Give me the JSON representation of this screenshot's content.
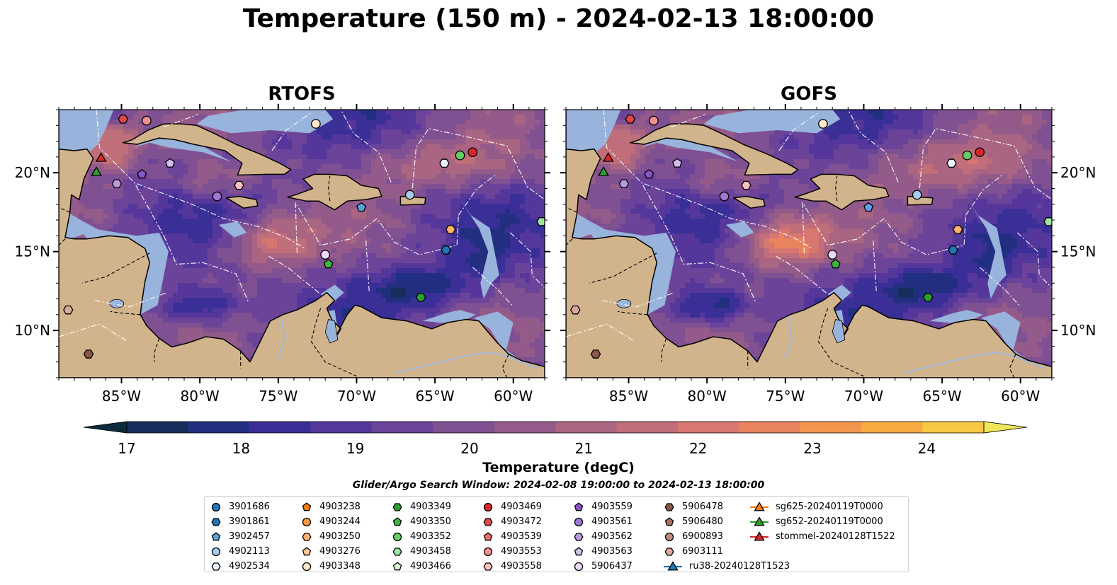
{
  "title": "Temperature (150 m) - 2024-02-13 18:00:00",
  "panels": [
    {
      "title": "RTOFS",
      "model": "rtofs"
    },
    {
      "title": "GOFS",
      "model": "gofs"
    }
  ],
  "map": {
    "lon_range": [
      -89,
      -58
    ],
    "lat_range": [
      7,
      24
    ],
    "lon_ticks": [
      -85,
      -80,
      -75,
      -70,
      -65,
      -60
    ],
    "lat_ticks": [
      10,
      15,
      20
    ],
    "lon_tick_labels": [
      "85°W",
      "80°W",
      "75°W",
      "70°W",
      "65°W",
      "60°W"
    ],
    "lat_tick_labels": [
      "10°N",
      "15°N",
      "20°N"
    ],
    "colors": {
      "land": "#d2b48c",
      "shallow_water": "#98b3dc",
      "deep": "#0a2232"
    }
  },
  "colorbar": {
    "label": "Temperature (degC)",
    "range": [
      17,
      24.5
    ],
    "step": 0.5,
    "ticks": [
      "17",
      "18",
      "19",
      "20",
      "21",
      "22",
      "23",
      "24"
    ],
    "extend": "both",
    "colors": [
      "#0c2a3d",
      "#172d5c",
      "#222f80",
      "#3a2f96",
      "#55379c",
      "#6b4499",
      "#7f5092",
      "#945b8a",
      "#a96581",
      "#c06e7a",
      "#d77770",
      "#e9845f",
      "#f3964d",
      "#f8ab42",
      "#f7c842",
      "#f1e65a"
    ]
  },
  "search_window": "Glider/Argo Search Window: 2024-02-08 19:00:00 to 2024-02-13 18:00:00",
  "legend": [
    {
      "label": "3901686",
      "marker": "circle",
      "color": "#1f77b4"
    },
    {
      "label": "3901861",
      "marker": "hexagon",
      "color": "#1f77b4"
    },
    {
      "label": "3902457",
      "marker": "pentagon",
      "color": "#5aa0db"
    },
    {
      "label": "4902113",
      "marker": "circle",
      "color": "#a6cbef"
    },
    {
      "label": "4902534",
      "marker": "hexagon",
      "color": "#eaf4ff"
    },
    {
      "label": "4903238",
      "marker": "pentagon",
      "color": "#ff7f0e"
    },
    {
      "label": "4903244",
      "marker": "circle",
      "color": "#ff9a3c"
    },
    {
      "label": "4903250",
      "marker": "hexagon",
      "color": "#ffb36b"
    },
    {
      "label": "4903276",
      "marker": "pentagon",
      "color": "#ffcc9a"
    },
    {
      "label": "4903348",
      "marker": "circle",
      "color": "#ffe8cc"
    },
    {
      "label": "4903349",
      "marker": "hexagon",
      "color": "#2ca02c"
    },
    {
      "label": "4903350",
      "marker": "pentagon",
      "color": "#3fb63f"
    },
    {
      "label": "4903352",
      "marker": "circle",
      "color": "#66cc66"
    },
    {
      "label": "4903458",
      "marker": "hexagon",
      "color": "#9ee49e"
    },
    {
      "label": "4903466",
      "marker": "pentagon",
      "color": "#d8f7d0"
    },
    {
      "label": "4903469",
      "marker": "circle",
      "color": "#d62728"
    },
    {
      "label": "4903472",
      "marker": "hexagon",
      "color": "#e04848"
    },
    {
      "label": "4903539",
      "marker": "pentagon",
      "color": "#ea6b6b"
    },
    {
      "label": "4903553",
      "marker": "circle",
      "color": "#f29090"
    },
    {
      "label": "4903558",
      "marker": "hexagon",
      "color": "#fac0c0"
    },
    {
      "label": "4903559",
      "marker": "pentagon",
      "color": "#8856c8"
    },
    {
      "label": "4903561",
      "marker": "circle",
      "color": "#9f78d4"
    },
    {
      "label": "4903562",
      "marker": "hexagon",
      "color": "#b79ae0"
    },
    {
      "label": "4903563",
      "marker": "pentagon",
      "color": "#d3beee"
    },
    {
      "label": "5906437",
      "marker": "circle",
      "color": "#ead9fa"
    },
    {
      "label": "5906478",
      "marker": "hexagon",
      "color": "#8c564b"
    },
    {
      "label": "5906480",
      "marker": "pentagon",
      "color": "#a86f62"
    },
    {
      "label": "6900893",
      "marker": "circle",
      "color": "#c08b7e"
    },
    {
      "label": "6903111",
      "marker": "hexagon",
      "color": "#dba89c"
    },
    {
      "label": "ru38-20240128T1523",
      "marker": "triangle-line",
      "color": "#1f77b4"
    },
    {
      "label": "sg625-20240119T0000",
      "marker": "triangle-line",
      "color": "#ff7f0e"
    },
    {
      "label": "sg652-20240119T0000",
      "marker": "triangle-line",
      "color": "#2ca02c"
    },
    {
      "label": "stommel-20240128T1522",
      "marker": "triangle-line",
      "color": "#d62728"
    }
  ],
  "markers": [
    {
      "id": "4903472",
      "lon": -84.9,
      "lat": 23.4
    },
    {
      "id": "4903553",
      "lon": -83.4,
      "lat": 23.3
    },
    {
      "id": "4903348",
      "lon": -72.6,
      "lat": 23.1
    },
    {
      "id": "4902534",
      "lon": -64.4,
      "lat": 20.6
    },
    {
      "id": "4903352",
      "lon": -63.4,
      "lat": 21.1
    },
    {
      "id": "4903469",
      "lon": -62.6,
      "lat": 21.3
    },
    {
      "id": "4903562",
      "lon": -85.3,
      "lat": 19.3
    },
    {
      "id": "4903559",
      "lon": -83.7,
      "lat": 19.9
    },
    {
      "id": "4903563",
      "lon": -81.9,
      "lat": 20.6
    },
    {
      "id": "4903558",
      "lon": -77.5,
      "lat": 19.2
    },
    {
      "id": "4903561",
      "lon": -78.9,
      "lat": 18.5
    },
    {
      "id": "4902113",
      "lon": -66.6,
      "lat": 18.6
    },
    {
      "id": "3902457",
      "lon": -69.7,
      "lat": 17.8
    },
    {
      "id": "4903458",
      "lon": -58.2,
      "lat": 16.9
    },
    {
      "id": "4903250",
      "lon": -64.0,
      "lat": 16.4
    },
    {
      "id": "3901861",
      "lon": -64.3,
      "lat": 15.1
    },
    {
      "id": "5906437",
      "lon": -72.0,
      "lat": 14.8
    },
    {
      "id": "4903350",
      "lon": -71.8,
      "lat": 14.2
    },
    {
      "id": "4903349",
      "lon": -65.9,
      "lat": 12.1
    },
    {
      "id": "6903111",
      "lon": -88.4,
      "lat": 11.3
    },
    {
      "id": "5906478",
      "lon": -87.1,
      "lat": 8.5
    },
    {
      "id": "sg652-20240119T0000",
      "lon": -86.6,
      "lat": 20.0
    },
    {
      "id": "stommel-20240128T1522",
      "lon": -86.3,
      "lat": 20.9
    }
  ]
}
